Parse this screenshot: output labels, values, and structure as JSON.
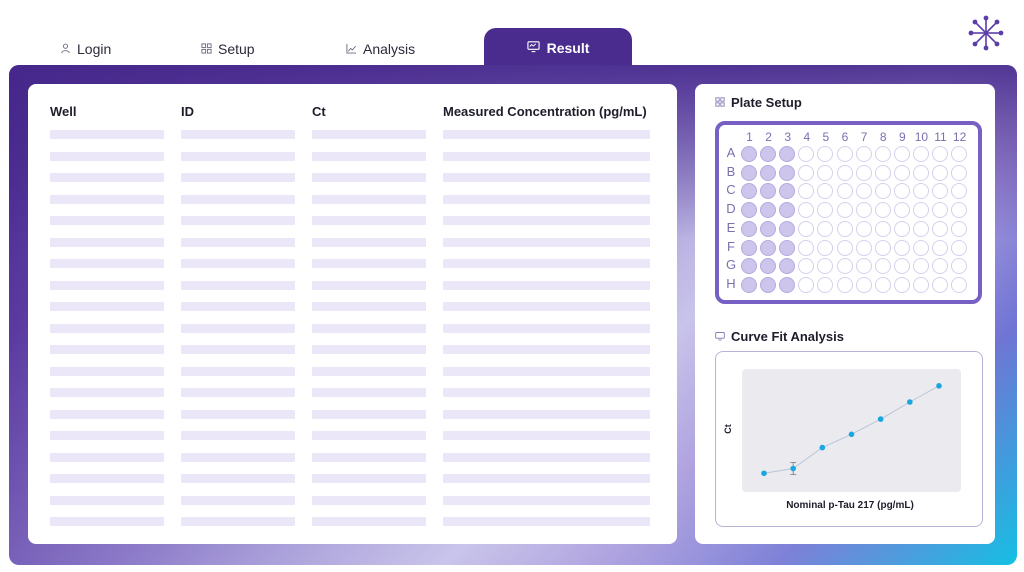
{
  "tabs": [
    {
      "label": "Login",
      "icon": "user-icon"
    },
    {
      "label": "Setup",
      "icon": "grid-icon"
    },
    {
      "label": "Analysis",
      "icon": "line-chart-icon"
    },
    {
      "label": "Result",
      "icon": "monitor-icon",
      "active": true
    }
  ],
  "results_table": {
    "columns": [
      "Well",
      "ID",
      "Ct",
      "Measured Concentration (pg/mL)"
    ],
    "placeholder_rows": 19
  },
  "plate_setup": {
    "title": "Plate Setup",
    "columns": [
      "1",
      "2",
      "3",
      "4",
      "5",
      "6",
      "7",
      "8",
      "9",
      "10",
      "11",
      "12"
    ],
    "rows": [
      "A",
      "B",
      "C",
      "D",
      "E",
      "F",
      "G",
      "H"
    ],
    "filled_columns": [
      1,
      2,
      3
    ]
  },
  "curve_fit": {
    "title": "Curve Fit Analysis",
    "ylabel": "Ct",
    "xlabel": "Nominal p-Tau 217 (pg/mL)"
  },
  "chart_data": {
    "type": "scatter",
    "title": "",
    "xlabel": "Nominal p-Tau 217 (pg/mL)",
    "ylabel": "Ct",
    "grid": false,
    "x": [
      1,
      2,
      3,
      4,
      5,
      6,
      7
    ],
    "y": [
      0.05,
      0.1,
      0.32,
      0.46,
      0.62,
      0.8,
      0.97
    ],
    "error_bar_index": 1,
    "line": true,
    "color": "#1aa6e0"
  },
  "colors": {
    "accent": "#4a2c8f",
    "plate_border": "#7660c4",
    "placeholder": "#ebe7f8",
    "point": "#1aa6e0"
  }
}
